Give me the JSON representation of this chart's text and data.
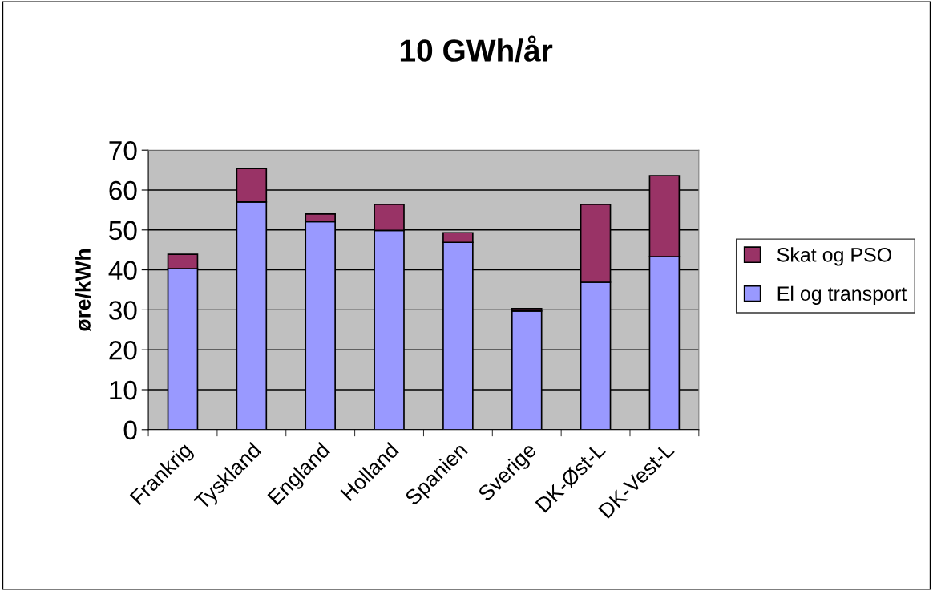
{
  "chart_data": {
    "type": "bar",
    "title": "10 GWh/år",
    "ylabel": "øre/kWh",
    "categories": [
      "Frankrig",
      "Tyskland",
      "England",
      "Holland",
      "Spanien",
      "Sverige",
      "DK-Øst-L",
      "DK-Vest-L"
    ],
    "stacked": true,
    "series": [
      {
        "name": "El og transport",
        "color": "#9999ff",
        "values": [
          40.3,
          57.0,
          52.1,
          49.9,
          46.9,
          29.7,
          36.9,
          43.3
        ]
      },
      {
        "name": "Skat og PSO",
        "color": "#993366",
        "values": [
          3.6,
          8.4,
          1.9,
          6.5,
          2.4,
          0.6,
          19.5,
          20.3
        ]
      }
    ],
    "ylim": [
      0,
      70
    ],
    "yticks": [
      0,
      10,
      20,
      30,
      40,
      50,
      60,
      70
    ],
    "grid": "y",
    "legend": "right"
  }
}
